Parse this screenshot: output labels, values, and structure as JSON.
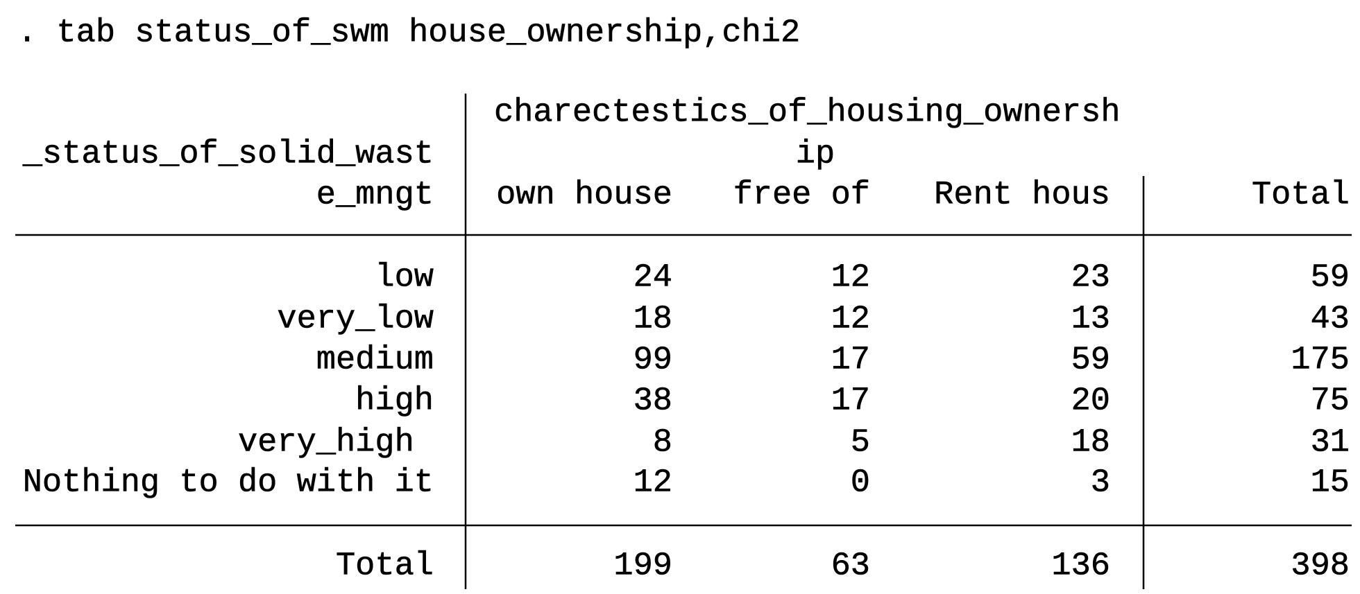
{
  "command": ". tab status_of_swm house_ownership,chi2",
  "table": {
    "col_var": [
      "charectestics_of_housing_ownersh",
      "ip"
    ],
    "row_var": [
      "_status_of_solid_wast",
      "e_mngt"
    ],
    "columns": [
      "own house",
      "free of",
      "Rent hous",
      "Total"
    ],
    "rows": [
      {
        "label": "low",
        "values": [
          24,
          12,
          23,
          59
        ]
      },
      {
        "label": "very_low",
        "values": [
          18,
          12,
          13,
          43
        ]
      },
      {
        "label": "medium",
        "values": [
          99,
          17,
          59,
          175
        ]
      },
      {
        "label": "high",
        "values": [
          38,
          17,
          20,
          75
        ]
      },
      {
        "label": "very_high ",
        "values": [
          8,
          5,
          18,
          31
        ]
      },
      {
        "label": "Nothing to do with it",
        "values": [
          12,
          0,
          3,
          15
        ]
      }
    ],
    "total": {
      "label": "Total",
      "values": [
        199,
        63,
        136,
        398
      ]
    }
  }
}
